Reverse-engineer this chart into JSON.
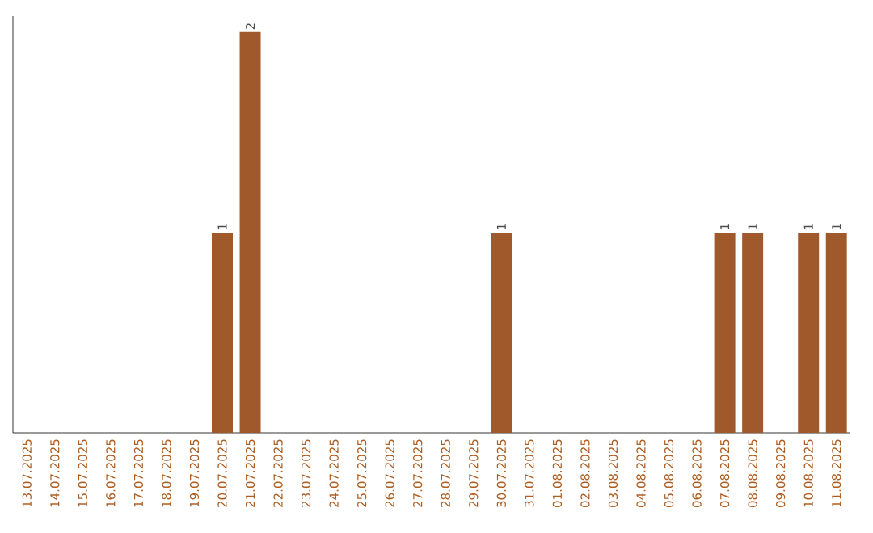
{
  "chart_data": {
    "type": "bar",
    "color": "#a0592b",
    "categories": [
      "13.07.2025",
      "14.07.2025",
      "15.07.2025",
      "16.07.2025",
      "17.07.2025",
      "18.07.2025",
      "19.07.2025",
      "20.07.2025",
      "21.07.2025",
      "22.07.2025",
      "23.07.2025",
      "24.07.2025",
      "25.07.2025",
      "26.07.2025",
      "27.07.2025",
      "28.07.2025",
      "29.07.2025",
      "30.07.2025",
      "31.07.2025",
      "01.08.2025",
      "02.08.2025",
      "03.08.2025",
      "04.08.2025",
      "05.08.2025",
      "06.08.2025",
      "07.08.2025",
      "08.08.2025",
      "09.08.2025",
      "10.08.2025",
      "11.08.2025"
    ],
    "values": [
      0,
      0,
      0,
      0,
      0,
      0,
      0,
      1,
      2,
      0,
      0,
      0,
      0,
      0,
      0,
      0,
      0,
      1,
      0,
      0,
      0,
      0,
      0,
      0,
      0,
      1,
      1,
      0,
      1,
      1
    ],
    "value_labels": [
      null,
      null,
      null,
      null,
      null,
      null,
      null,
      "1",
      "2",
      null,
      null,
      null,
      null,
      null,
      null,
      null,
      null,
      "1",
      null,
      null,
      null,
      null,
      null,
      null,
      null,
      "1",
      "1",
      null,
      "1",
      "1"
    ]
  }
}
